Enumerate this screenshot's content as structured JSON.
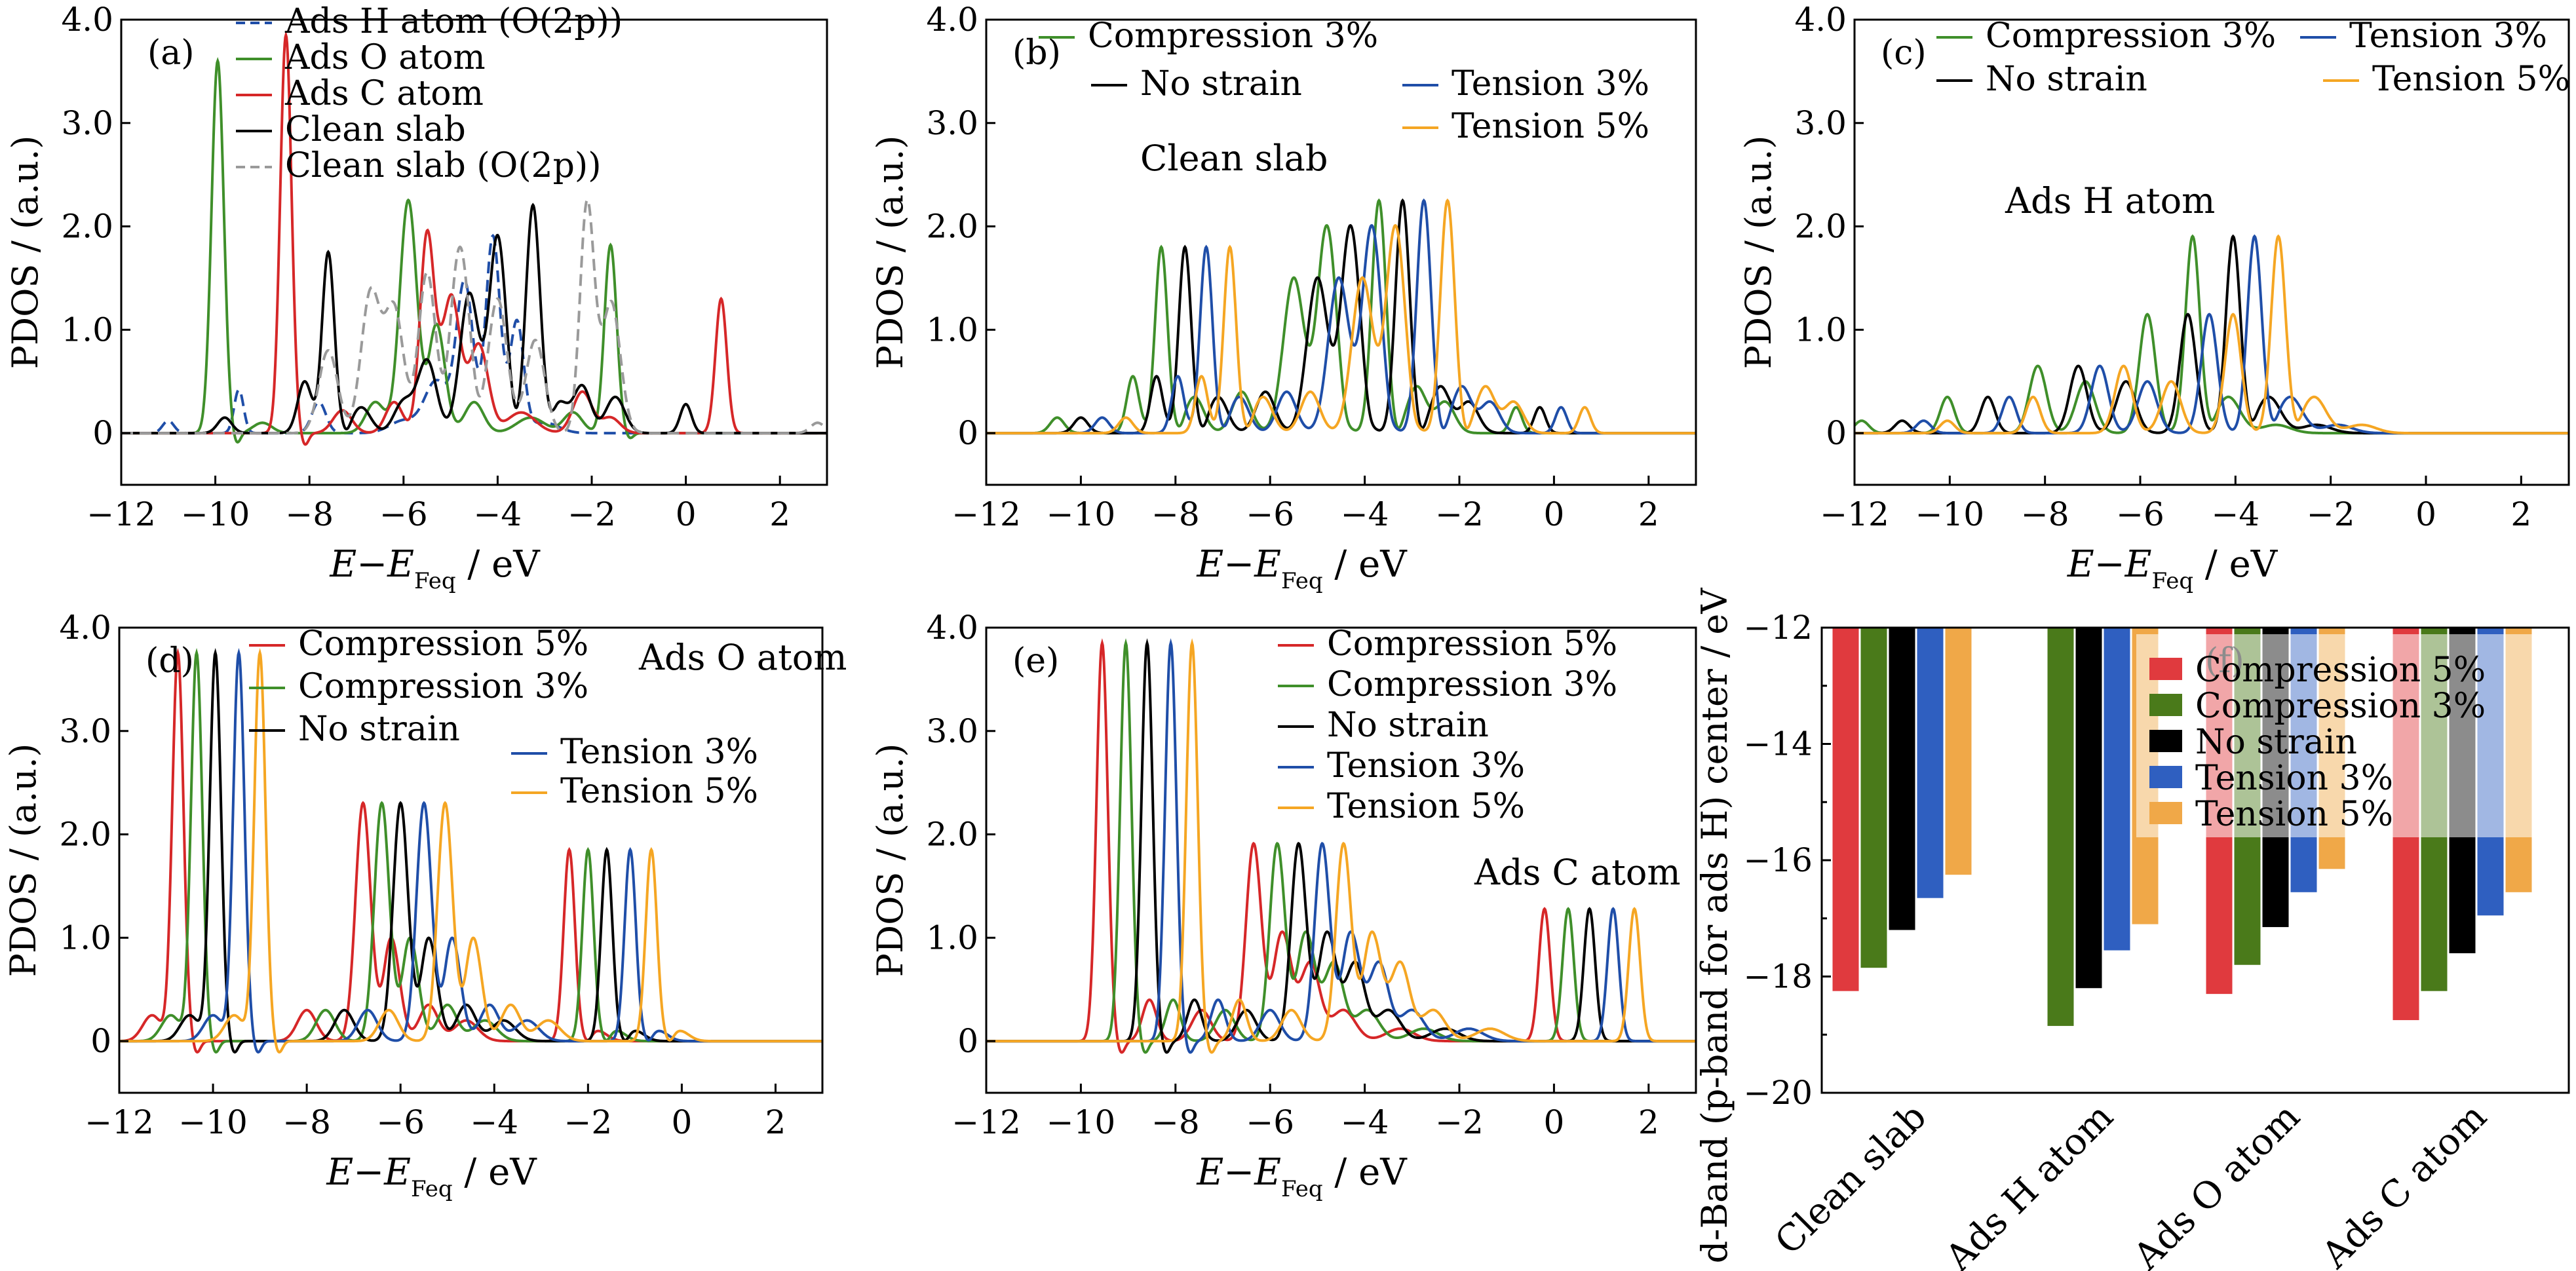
{
  "colors": {
    "compression5": "#d62728",
    "compression3": "#3f8f2a",
    "nostrain": "#000000",
    "tension3": "#1f4ea8",
    "tension5": "#f5a623",
    "adsH": "#1f4ea8",
    "adsO": "#3f8f2a",
    "adsC": "#d62728",
    "clean": "#1f4ea8",
    "cleanO2p": "#9a9a9a",
    "bar_compression5": "#e03a3e",
    "bar_compression3": "#4a7a1a",
    "bar_nostrain": "#000000",
    "bar_tension3": "#2f5fc0",
    "bar_tension5": "#f0a848"
  },
  "chart_data": [
    {
      "id": "a",
      "type": "line",
      "panel_label": "(a)",
      "xlabel": "E−E",
      "xlabel_sub": "Feq",
      "xlabel_unit": " / eV",
      "ylabel": "PDOS / (a.u.)",
      "xlim": [
        -12,
        3
      ],
      "ylim": [
        -0.5,
        4.0
      ],
      "xticks": [
        "−12",
        "−10",
        "−8",
        "−6",
        "−4",
        "−2",
        "0",
        "2"
      ],
      "yticks": [
        "0",
        "1.0",
        "2.0",
        "3.0",
        "4.0"
      ],
      "legend": [
        "Ads H atom (O(2p))",
        "Ads O atom",
        "Ads C atom",
        "Clean slab",
        "Clean slab (O(2p))"
      ],
      "series": [
        {
          "name": "Ads H atom (O(2p))",
          "color_key": "adsH",
          "dash": true,
          "peaks": [
            [
              -11.0,
              0.12,
              0.12
            ],
            [
              -9.5,
              0.42,
              0.1
            ],
            [
              -7.8,
              0.3,
              0.15
            ],
            [
              -6.0,
              0.12,
              0.3
            ],
            [
              -5.3,
              0.5,
              0.25
            ],
            [
              -4.7,
              1.45,
              0.18
            ],
            [
              -4.1,
              1.9,
              0.15
            ],
            [
              -3.6,
              1.1,
              0.15
            ],
            [
              -3.0,
              0.1,
              0.3
            ]
          ]
        },
        {
          "name": "Ads O atom",
          "color_key": "adsO",
          "dash": false,
          "peaks": [
            [
              -9.95,
              3.6,
              0.13
            ],
            [
              -9.0,
              0.1,
              0.2
            ],
            [
              -6.6,
              0.3,
              0.2
            ],
            [
              -5.9,
              2.25,
              0.18
            ],
            [
              -5.3,
              1.05,
              0.18
            ],
            [
              -4.5,
              0.3,
              0.2
            ],
            [
              -3.3,
              0.15,
              0.3
            ],
            [
              -2.4,
              0.2,
              0.2
            ],
            [
              -1.6,
              1.82,
              0.13
            ]
          ]
        },
        {
          "name": "Ads C atom",
          "color_key": "adsC",
          "dash": false,
          "peaks": [
            [
              -8.5,
              3.85,
              0.12
            ],
            [
              -7.3,
              0.22,
              0.2
            ],
            [
              -6.2,
              0.3,
              0.18
            ],
            [
              -5.5,
              1.9,
              0.15
            ],
            [
              -5.0,
              1.35,
              0.2
            ],
            [
              -4.4,
              0.85,
              0.2
            ],
            [
              -3.5,
              0.2,
              0.3
            ],
            [
              -2.2,
              0.4,
              0.2
            ],
            [
              -1.6,
              0.15,
              0.2
            ],
            [
              0.75,
              1.3,
              0.12
            ]
          ]
        },
        {
          "name": "Clean slab",
          "color_key": "nostrain",
          "dash": false,
          "peaks": [
            [
              -9.8,
              0.15,
              0.15
            ],
            [
              -8.1,
              0.5,
              0.15
            ],
            [
              -7.6,
              1.75,
              0.13
            ],
            [
              -6.9,
              0.25,
              0.2
            ],
            [
              -6.0,
              0.3,
              0.2
            ],
            [
              -5.5,
              0.7,
              0.2
            ],
            [
              -4.6,
              1.35,
              0.2
            ],
            [
              -4.0,
              1.9,
              0.18
            ],
            [
              -3.25,
              2.2,
              0.15
            ],
            [
              -2.7,
              0.3,
              0.2
            ],
            [
              -2.2,
              0.45,
              0.18
            ],
            [
              -1.5,
              0.35,
              0.2
            ],
            [
              0.0,
              0.28,
              0.12
            ]
          ]
        },
        {
          "name": "Clean slab (O(2p))",
          "color_key": "cleanO2p",
          "dash": true,
          "peaks": [
            [
              -7.6,
              0.8,
              0.2
            ],
            [
              -6.7,
              1.35,
              0.2
            ],
            [
              -6.2,
              1.2,
              0.2
            ],
            [
              -5.5,
              1.55,
              0.18
            ],
            [
              -4.8,
              1.8,
              0.2
            ],
            [
              -4.0,
              1.3,
              0.2
            ],
            [
              -3.2,
              0.9,
              0.2
            ],
            [
              -2.1,
              2.2,
              0.15
            ],
            [
              -1.6,
              1.3,
              0.2
            ],
            [
              2.8,
              0.1,
              0.15
            ]
          ]
        }
      ]
    },
    {
      "id": "b",
      "type": "line",
      "panel_label": "(b)",
      "annotation": "Clean slab",
      "xlabel": "E−E",
      "xlabel_sub": "Feq",
      "xlabel_unit": " / eV",
      "ylabel": "PDOS / (a.u.)",
      "xlim": [
        -12,
        3
      ],
      "ylim": [
        -0.5,
        4.0
      ],
      "xticks": [
        "−12",
        "−10",
        "−8",
        "−6",
        "−4",
        "−2",
        "0",
        "2"
      ],
      "yticks": [
        "0",
        "1.0",
        "2.0",
        "3.0",
        "4.0"
      ],
      "legend": [
        "Compression 3%",
        "No strain",
        "Tension 3%",
        "Tension 5%"
      ],
      "series": [
        {
          "name": "Compression 3%",
          "color_key": "compression3",
          "shift": -0.5
        },
        {
          "name": "No strain",
          "color_key": "nostrain",
          "shift": 0.0
        },
        {
          "name": "Tension 3%",
          "color_key": "tension3",
          "shift": 0.45
        },
        {
          "name": "Tension 5%",
          "color_key": "tension5",
          "shift": 0.95
        }
      ],
      "base_peaks": [
        [
          -10.0,
          0.15,
          0.15
        ],
        [
          -8.4,
          0.55,
          0.13
        ],
        [
          -7.8,
          1.8,
          0.13
        ],
        [
          -7.1,
          0.35,
          0.2
        ],
        [
          -6.1,
          0.4,
          0.2
        ],
        [
          -5.0,
          1.5,
          0.22
        ],
        [
          -4.3,
          2.0,
          0.2
        ],
        [
          -3.2,
          2.25,
          0.15
        ],
        [
          -2.4,
          0.45,
          0.2
        ],
        [
          -1.8,
          0.3,
          0.2
        ],
        [
          -0.3,
          0.25,
          0.12
        ]
      ]
    },
    {
      "id": "c",
      "type": "line",
      "panel_label": "(c)",
      "annotation": "Ads H atom",
      "xlabel": "E−E",
      "xlabel_sub": "Feq",
      "xlabel_unit": " / eV",
      "ylabel": "PDOS / (a.u.)",
      "xlim": [
        -12,
        3
      ],
      "ylim": [
        -0.5,
        4.0
      ],
      "xticks": [
        "−12",
        "−10",
        "−8",
        "−6",
        "−4",
        "−2",
        "0",
        "2"
      ],
      "yticks": [
        "0",
        "1.0",
        "2.0",
        "3.0",
        "4.0"
      ],
      "legend": [
        "Compression 3%",
        "Tension 3%",
        "No strain",
        "Tension 5%"
      ],
      "series": [
        {
          "name": "Compression 3%",
          "color_key": "compression3",
          "shift": -0.85
        },
        {
          "name": "No strain",
          "color_key": "nostrain",
          "shift": 0.0
        },
        {
          "name": "Tension 3%",
          "color_key": "tension3",
          "shift": 0.45
        },
        {
          "name": "Tension 5%",
          "color_key": "tension5",
          "shift": 0.95
        }
      ],
      "base_peaks": [
        [
          -11.0,
          0.12,
          0.15
        ],
        [
          -9.2,
          0.35,
          0.15
        ],
        [
          -7.3,
          0.65,
          0.18
        ],
        [
          -6.3,
          0.5,
          0.2
        ],
        [
          -5.0,
          1.15,
          0.17
        ],
        [
          -4.05,
          1.9,
          0.15
        ],
        [
          -3.3,
          0.35,
          0.25
        ],
        [
          -2.3,
          0.08,
          0.3
        ]
      ]
    },
    {
      "id": "d",
      "type": "line",
      "panel_label": "(d)",
      "annotation": "Ads O atom",
      "xlabel": "E−E",
      "xlabel_sub": "Feq",
      "xlabel_unit": " / eV",
      "ylabel": "PDOS / (a.u.)",
      "xlim": [
        -12,
        3
      ],
      "ylim": [
        -0.5,
        4.0
      ],
      "xticks": [
        "−12",
        "−10",
        "−8",
        "−6",
        "−4",
        "−2",
        "0",
        "2"
      ],
      "yticks": [
        "0",
        "1.0",
        "2.0",
        "3.0",
        "4.0"
      ],
      "legend": [
        "Compression 5%",
        "Compression 3%",
        "No strain",
        "Tension 3%",
        "Tension 5%"
      ],
      "series": [
        {
          "name": "Compression 5%",
          "color_key": "compression5",
          "shift": -0.8
        },
        {
          "name": "Compression 3%",
          "color_key": "compression3",
          "shift": -0.4
        },
        {
          "name": "No strain",
          "color_key": "nostrain",
          "shift": 0.0
        },
        {
          "name": "Tension 3%",
          "color_key": "tension3",
          "shift": 0.5
        },
        {
          "name": "Tension 5%",
          "color_key": "tension5",
          "shift": 0.95
        }
      ],
      "base_peaks": [
        [
          -10.5,
          0.25,
          0.2
        ],
        [
          -9.95,
          3.75,
          0.12
        ],
        [
          -7.2,
          0.3,
          0.2
        ],
        [
          -6.0,
          2.3,
          0.16
        ],
        [
          -5.4,
          1.0,
          0.18
        ],
        [
          -4.6,
          0.35,
          0.2
        ],
        [
          -3.8,
          0.2,
          0.25
        ],
        [
          -1.6,
          1.85,
          0.12
        ],
        [
          -1.0,
          0.1,
          0.2
        ]
      ]
    },
    {
      "id": "e",
      "type": "line",
      "panel_label": "(e)",
      "annotation": "Ads C atom",
      "xlabel": "E−E",
      "xlabel_sub": "Feq",
      "xlabel_unit": " / eV",
      "ylabel": "PDOS / (a.u.)",
      "xlim": [
        -12,
        3
      ],
      "ylim": [
        -0.5,
        4.0
      ],
      "xticks": [
        "−12",
        "−10",
        "−8",
        "−6",
        "−4",
        "−2",
        "0",
        "2"
      ],
      "yticks": [
        "0",
        "1.0",
        "2.0",
        "3.0",
        "4.0"
      ],
      "legend": [
        "Compression 5%",
        "Compression 3%",
        "No strain",
        "Tension 3%",
        "Tension 5%"
      ],
      "series": [
        {
          "name": "Compression 5%",
          "color_key": "compression5",
          "shift": -0.95
        },
        {
          "name": "Compression 3%",
          "color_key": "compression3",
          "shift": -0.45
        },
        {
          "name": "No strain",
          "color_key": "nostrain",
          "shift": 0.0
        },
        {
          "name": "Tension 3%",
          "color_key": "tension3",
          "shift": 0.5
        },
        {
          "name": "Tension 5%",
          "color_key": "tension5",
          "shift": 0.95
        }
      ],
      "base_peaks": [
        [
          -8.6,
          3.85,
          0.12
        ],
        [
          -7.6,
          0.4,
          0.15
        ],
        [
          -6.5,
          0.3,
          0.2
        ],
        [
          -5.4,
          1.9,
          0.16
        ],
        [
          -4.8,
          1.05,
          0.2
        ],
        [
          -4.2,
          0.75,
          0.2
        ],
        [
          -3.5,
          0.3,
          0.25
        ],
        [
          -2.3,
          0.12,
          0.3
        ],
        [
          0.75,
          1.28,
          0.12
        ]
      ]
    },
    {
      "id": "f",
      "type": "bar",
      "panel_label": "(f)",
      "ylabel": "d-Band (p-band for ads H) center / eV",
      "ylim": [
        -20,
        -12
      ],
      "yticks": [
        "−20",
        "−18",
        "−16",
        "−14",
        "−12"
      ],
      "categories": [
        "Clean slab",
        "Ads H atom",
        "Ads O atom",
        "Ads C atom"
      ],
      "legend": [
        "Compression 5%",
        "Compression 3%",
        "No strain",
        "Tension 3%",
        "Tension 5%"
      ],
      "series": [
        {
          "name": "Compression 5%",
          "color_key": "bar_compression5",
          "values": [
            -18.25,
            null,
            -18.3,
            -18.75
          ]
        },
        {
          "name": "Compression 3%",
          "color_key": "bar_compression3",
          "values": [
            -17.85,
            -18.85,
            -17.8,
            -18.25
          ]
        },
        {
          "name": "No strain",
          "color_key": "bar_nostrain",
          "values": [
            -17.2,
            -18.2,
            -17.15,
            -17.6
          ]
        },
        {
          "name": "Tension 3%",
          "color_key": "bar_tension3",
          "values": [
            -16.65,
            -17.55,
            -16.55,
            -16.95
          ]
        },
        {
          "name": "Tension 5%",
          "color_key": "bar_tension5",
          "values": [
            -16.25,
            -17.1,
            -16.15,
            -16.55
          ]
        }
      ]
    }
  ]
}
